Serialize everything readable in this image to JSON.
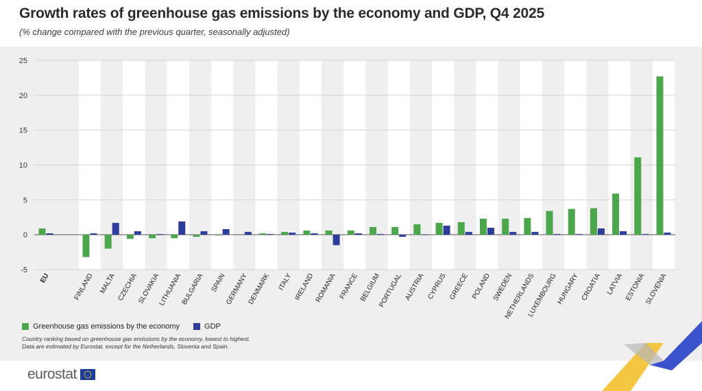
{
  "title": "Growth rates of greenhouse gas emissions by the economy and GDP, Q4 2025",
  "subtitle": "(% change compared with the previous quarter, seasonally adjusted)",
  "chart_data": {
    "type": "bar",
    "categories": [
      "EU",
      "FINLAND",
      "MALTA",
      "CZECHIA",
      "SLOVAKIA",
      "LITHUANIA",
      "BULGARIA",
      "SPAIN",
      "GERMANY",
      "DENMARK",
      "ITALY",
      "IRELAND",
      "ROMANIA",
      "FRANCE",
      "BELGIUM",
      "PORTUGAL",
      "AUSTRIA",
      "CYPRUS",
      "GREECE",
      "POLAND",
      "SWEDEN",
      "NETHERLANDS",
      "LUXEMBOURG",
      "HUNGARY",
      "CROATIA",
      "LATVIA",
      "ESTONIA",
      "SLOVENIA"
    ],
    "series": [
      {
        "name": "Greenhouse gas emissions by the economy",
        "color": "#4ca64c",
        "values": [
          0.9,
          -3.2,
          -2.0,
          -0.6,
          -0.5,
          -0.5,
          -0.3,
          -0.1,
          0.0,
          0.2,
          0.4,
          0.6,
          0.6,
          0.6,
          1.1,
          1.1,
          1.5,
          1.7,
          1.8,
          2.3,
          2.3,
          2.4,
          3.4,
          3.7,
          3.8,
          5.9,
          11.1,
          22.7
        ]
      },
      {
        "name": "GDP",
        "color": "#2e3d9a",
        "values": [
          0.2,
          0.2,
          1.7,
          0.5,
          0.1,
          1.9,
          0.5,
          0.8,
          0.4,
          0.1,
          0.3,
          0.2,
          -1.5,
          0.2,
          0.1,
          -0.3,
          0.0,
          1.3,
          0.4,
          1.0,
          0.4,
          0.4,
          0.1,
          0.1,
          0.9,
          0.5,
          0.1,
          0.3
        ]
      }
    ],
    "yticks": [
      25,
      20,
      15,
      10,
      5,
      0,
      -5
    ],
    "ylim": [
      -5,
      25
    ],
    "grid": true,
    "legend_position": "bottom-left"
  },
  "notes": [
    "Country ranking based on greenhouse gas emissions by the economy, lowest to highest.",
    "Data are estimated by Eurostat, except for the Netherlands, Slovenia and Spain."
  ],
  "logo": {
    "text": "eurostat"
  }
}
